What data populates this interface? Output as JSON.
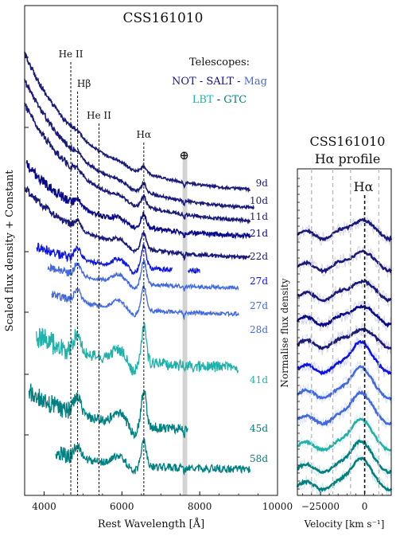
{
  "colors": {
    "not": "#1a1a7a",
    "salt": "#0a0a8c",
    "mag": "#4169e1",
    "blue": "#0b14e6",
    "lbt": "#20b2aa",
    "gtc": "#008080",
    "ink": "#111111",
    "telluric_band": "#c8c8c8"
  },
  "chart_data": [
    {
      "type": "line",
      "title": "CSS161010",
      "xlabel": "Rest Wavelength [Å]",
      "ylabel": "Scaled flux density + Constant",
      "xlim": [
        3500,
        10000
      ],
      "xticks": [
        "4000",
        "6000",
        "8000",
        "10000"
      ],
      "legend": {
        "title": "Telescopes:",
        "entries": [
          {
            "name": "NOT",
            "color": "not"
          },
          {
            "name": "SALT",
            "color": "salt"
          },
          {
            "name": "Mag",
            "color": "mag"
          },
          {
            "name": "LBT",
            "color": "lbt"
          },
          {
            "name": "GTC",
            "color": "gtc"
          }
        ],
        "separator": "-"
      },
      "lines": [
        {
          "label": "He II",
          "x": 4686
        },
        {
          "label": "Hβ",
          "x": 4861
        },
        {
          "label": "He II",
          "x": 5411
        },
        {
          "label": "Hα",
          "x": 6563
        }
      ],
      "telluric": {
        "label": "⊕",
        "x": 7600
      },
      "series": [
        {
          "name": "9d",
          "color": "not",
          "x_range": [
            3500,
            9300
          ]
        },
        {
          "name": "10d",
          "color": "not",
          "x_range": [
            3500,
            9400
          ]
        },
        {
          "name": "11d",
          "color": "not",
          "x_range": [
            3500,
            9300
          ]
        },
        {
          "name": "21d",
          "color": "salt",
          "x_range": [
            3550,
            9300
          ]
        },
        {
          "name": "22d",
          "color": "not",
          "x_range": [
            3500,
            9300
          ]
        },
        {
          "name": "27d",
          "color": "blue",
          "x_range": [
            3800,
            8000
          ]
        },
        {
          "name": "27d",
          "color": "mag",
          "x_range": [
            4100,
            9000
          ]
        },
        {
          "name": "28d",
          "color": "mag",
          "x_range": [
            4200,
            9000
          ]
        },
        {
          "name": "41d",
          "color": "lbt",
          "x_range": [
            3800,
            9000
          ]
        },
        {
          "name": "45d",
          "color": "gtc",
          "x_range": [
            3600,
            7700
          ]
        },
        {
          "name": "58d",
          "color": "gtc",
          "x_range": [
            4300,
            9300
          ]
        }
      ]
    },
    {
      "type": "line",
      "title": "CSS161010",
      "subtitle": "Hα profile",
      "xlabel": "Velocity [km s⁻¹]",
      "ylabel": "Normalise flux density",
      "xlim": [
        -38000,
        15000
      ],
      "xticks": [
        "−25000",
        "0"
      ],
      "annotation": "Hα",
      "marker_velocities": [
        -30000,
        -18000,
        -8000,
        0,
        8000
      ],
      "series": [
        {
          "name": "9d",
          "color": "not"
        },
        {
          "name": "10d",
          "color": "not"
        },
        {
          "name": "11d",
          "color": "not"
        },
        {
          "name": "21d",
          "color": "salt"
        },
        {
          "name": "22d",
          "color": "not"
        },
        {
          "name": "27d",
          "color": "blue"
        },
        {
          "name": "27d",
          "color": "mag"
        },
        {
          "name": "28d",
          "color": "mag"
        },
        {
          "name": "41d",
          "color": "lbt"
        },
        {
          "name": "45d",
          "color": "gtc"
        },
        {
          "name": "58d",
          "color": "gtc"
        }
      ]
    }
  ]
}
